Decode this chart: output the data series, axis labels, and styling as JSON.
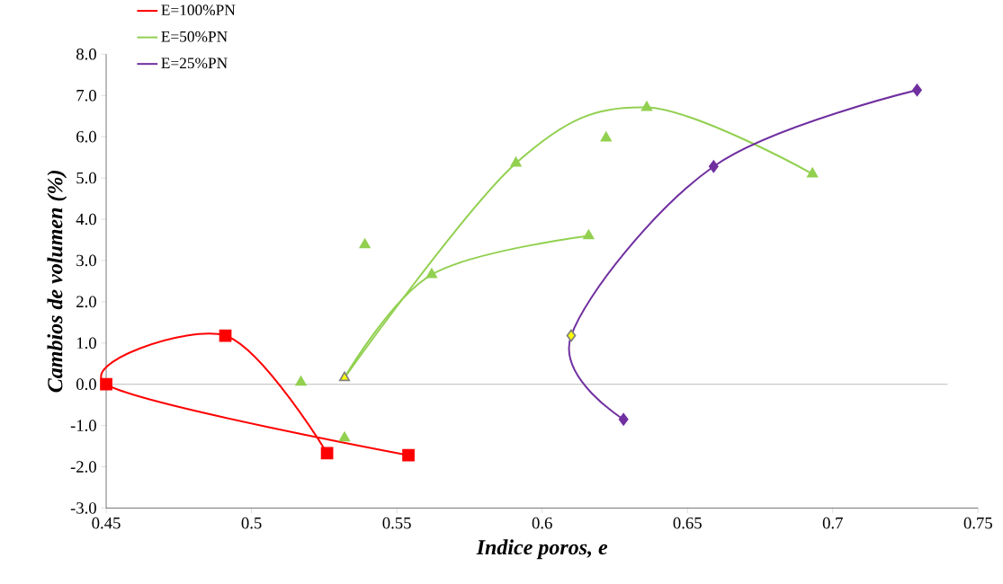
{
  "chart_data": {
    "type": "line",
    "xlabel": "Indice poros, e",
    "ylabel": "Cambios de volumen (%)",
    "xlim": [
      0.45,
      0.75
    ],
    "xticks": [
      0.45,
      0.5,
      0.55,
      0.6,
      0.65,
      0.7,
      0.75
    ],
    "ylim": [
      -3,
      8
    ],
    "yticks": [
      {
        "value": -3,
        "label": "-3.0"
      },
      {
        "value": -2,
        "label": "-2.0"
      },
      {
        "value": -1,
        "label": "-1.0"
      },
      {
        "value": 0,
        "label": "0.0"
      },
      {
        "value": 1,
        "label": "1.0"
      },
      {
        "value": 2,
        "label": "2.0"
      },
      {
        "value": 3,
        "label": "3.0"
      },
      {
        "value": 4,
        "label": "4.0"
      },
      {
        "value": 5,
        "label": "5.0"
      },
      {
        "value": 6,
        "label": "6.0"
      },
      {
        "value": 7,
        "label": "7.0"
      },
      {
        "value": 8,
        "label": "8.0"
      }
    ],
    "legend": "top left",
    "grid": false,
    "line_style": "solid",
    "ref_lines": [
      {
        "axis": "y",
        "value": 0,
        "color": "#808080"
      }
    ],
    "series": [
      {
        "name": "E=100%PN",
        "color": "#ff0000",
        "marker": "none",
        "x": [
          0.554,
          0.45,
          0.491,
          0.526
        ],
        "values": [
          -1.72,
          0.0,
          1.18,
          -1.67
        ]
      },
      {
        "name": "E=50%PN",
        "color": "#92d050",
        "marker": "none",
        "x": [
          0.532,
          0.591,
          0.636,
          0.693
        ],
        "values": [
          0.16,
          5.36,
          6.71,
          5.1
        ]
      },
      {
        "color": "#92d050",
        "marker": "none",
        "x": [
          0.532,
          0.562,
          0.616
        ],
        "values": [
          0.16,
          2.66,
          3.6
        ]
      },
      {
        "name": "E=25%PN",
        "color": "#7030a0",
        "marker": "none",
        "x": [
          0.628,
          0.61,
          0.659,
          0.729
        ],
        "values": [
          -0.85,
          1.18,
          5.28,
          7.13
        ]
      },
      {
        "type": "scatter",
        "color": "#ff0000",
        "marker": "square",
        "x": [
          0.554,
          0.45
        ],
        "values": [
          -1.72,
          0.0
        ]
      },
      {
        "type": "scatter",
        "color": "#ff0000",
        "marker": "square",
        "x": [
          0.491,
          0.526
        ],
        "values": [
          1.18,
          -1.67
        ]
      },
      {
        "type": "scatter",
        "color": "#92d050",
        "marker": "triangle",
        "x": [
          0.517,
          0.539,
          0.591,
          0.622,
          0.636,
          0.693
        ],
        "values": [
          0.05,
          3.38,
          5.36,
          5.97,
          6.71,
          5.1
        ]
      },
      {
        "type": "scatter",
        "color": "#92d050",
        "marker": "triangle",
        "x": [
          0.532,
          0.562,
          0.616
        ],
        "values": [
          -1.3,
          2.66,
          3.6
        ]
      },
      {
        "type": "scatter",
        "color": "#ffff00",
        "marker": "triangle",
        "x": [
          0.532
        ],
        "values": [
          0.16
        ]
      },
      {
        "type": "scatter",
        "color": "#7030a0",
        "marker": "diamond",
        "x": [
          0.628
        ],
        "values": [
          -0.85
        ]
      },
      {
        "type": "scatter",
        "color": "#ffff00",
        "marker": "diamond",
        "x": [
          0.61
        ],
        "values": [
          1.18
        ]
      },
      {
        "type": "scatter",
        "color": "#7030a0",
        "marker": "diamond",
        "x": [
          0.659,
          0.729
        ],
        "values": [
          5.28,
          7.13
        ]
      }
    ]
  }
}
